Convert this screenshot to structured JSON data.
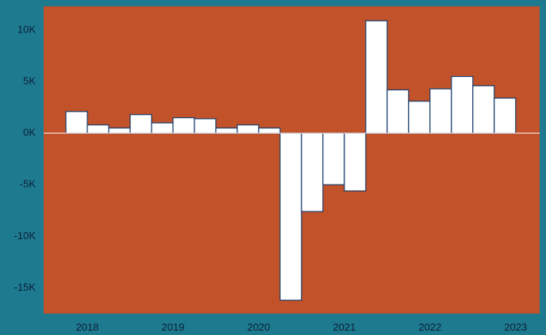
{
  "chart_data": {
    "type": "bar",
    "x": [
      2017.875,
      2018.125,
      2018.375,
      2018.625,
      2018.875,
      2019.125,
      2019.375,
      2019.625,
      2019.875,
      2020.125,
      2020.375,
      2020.625,
      2020.875,
      2021.125,
      2021.375,
      2021.625,
      2021.875,
      2022.125,
      2022.375,
      2022.625,
      2022.875
    ],
    "values": [
      2100,
      800,
      500,
      1800,
      1000,
      1500,
      1400,
      500,
      800,
      500,
      -16200,
      -7600,
      -5000,
      -5600,
      10900,
      4200,
      3100,
      4300,
      5500,
      4600,
      3400
    ],
    "color": "#ffffff",
    "edge_color": "#1a3d6b",
    "plot_background": "#c1522a",
    "background": "#1e7b8f",
    "xlim": [
      2017.49,
      2023.28
    ],
    "xticks": [
      2018,
      2019,
      2020,
      2021,
      2022,
      2023
    ],
    "ylim": [
      -17500,
      12300
    ],
    "yticks": [
      {
        "value": -15000,
        "label": "-15K"
      },
      {
        "value": -10000,
        "label": "-10K"
      },
      {
        "value": -5000,
        "label": "-5K"
      },
      {
        "value": 0,
        "label": "0K"
      },
      {
        "value": 5000,
        "label": "5K"
      },
      {
        "value": 10000,
        "label": "10K"
      }
    ],
    "grid": false
  }
}
